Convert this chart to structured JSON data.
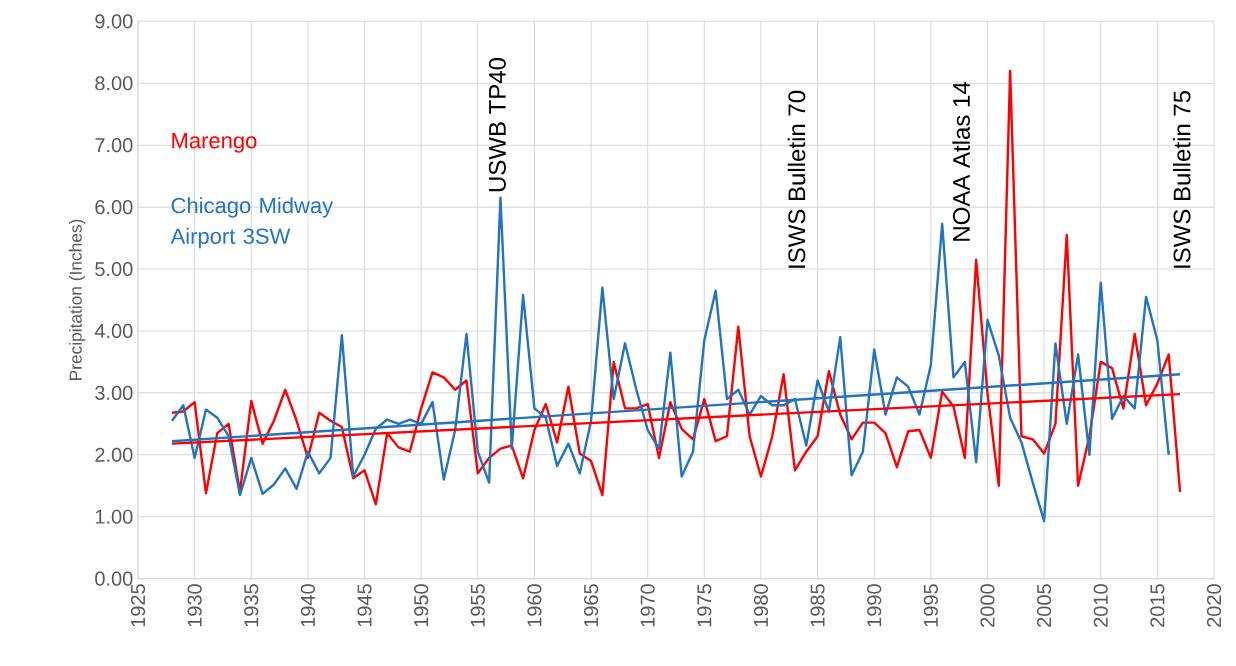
{
  "chart_data": {
    "type": "line",
    "ylabel": "Precipitation (Inches)",
    "x": [
      1928,
      1929,
      1930,
      1931,
      1932,
      1933,
      1934,
      1935,
      1936,
      1937,
      1938,
      1939,
      1940,
      1941,
      1942,
      1943,
      1944,
      1945,
      1946,
      1947,
      1948,
      1949,
      1950,
      1951,
      1952,
      1953,
      1954,
      1955,
      1956,
      1957,
      1958,
      1959,
      1960,
      1961,
      1962,
      1963,
      1964,
      1965,
      1966,
      1967,
      1968,
      1969,
      1970,
      1971,
      1972,
      1973,
      1974,
      1975,
      1976,
      1977,
      1978,
      1979,
      1980,
      1981,
      1982,
      1983,
      1984,
      1985,
      1986,
      1987,
      1988,
      1989,
      1990,
      1991,
      1992,
      1993,
      1994,
      1995,
      1996,
      1997,
      1998,
      1999,
      2000,
      2001,
      2002,
      2003,
      2004,
      2005,
      2006,
      2007,
      2008,
      2009,
      2010,
      2011,
      2012,
      2013,
      2014,
      2015,
      2016,
      2017
    ],
    "series": [
      {
        "name": "Marengo",
        "color": "#ff0000",
        "values": [
          2.68,
          2.7,
          2.85,
          1.38,
          2.35,
          2.5,
          1.4,
          2.87,
          2.18,
          2.55,
          3.05,
          2.55,
          1.95,
          2.68,
          2.55,
          2.45,
          1.62,
          1.75,
          1.2,
          2.35,
          2.12,
          2.05,
          2.75,
          3.33,
          3.25,
          3.05,
          3.2,
          1.7,
          1.95,
          2.1,
          2.15,
          1.62,
          2.4,
          2.82,
          2.2,
          3.1,
          2.02,
          1.9,
          1.35,
          3.5,
          2.75,
          2.75,
          2.82,
          1.95,
          2.85,
          2.42,
          2.25,
          2.9,
          2.22,
          2.3,
          4.07,
          2.3,
          1.65,
          2.3,
          3.3,
          1.75,
          2.05,
          2.3,
          3.35,
          2.65,
          2.25,
          2.52,
          2.52,
          2.35,
          1.8,
          2.38,
          2.4,
          1.95,
          3.02,
          2.78,
          1.95,
          5.15,
          3.0,
          1.5,
          8.2,
          2.3,
          2.25,
          2.02,
          2.5,
          5.55,
          1.5,
          2.3,
          3.5,
          3.4,
          2.75,
          3.95,
          2.8,
          3.15,
          3.62,
          1.4
        ]
      },
      {
        "name": "Chicago Midway Airport 3SW",
        "color": "#2273c0",
        "values": [
          2.55,
          2.8,
          1.95,
          2.73,
          2.6,
          2.3,
          1.35,
          1.95,
          1.37,
          1.52,
          1.78,
          1.45,
          2.05,
          1.7,
          1.95,
          3.93,
          1.65,
          2.0,
          2.42,
          2.57,
          2.5,
          2.57,
          2.5,
          2.85,
          1.6,
          2.4,
          3.95,
          2.05,
          1.55,
          6.15,
          2.1,
          4.58,
          2.75,
          2.6,
          1.82,
          2.18,
          1.7,
          2.55,
          4.7,
          2.9,
          3.8,
          3.05,
          2.4,
          2.1,
          3.65,
          1.65,
          2.05,
          3.85,
          4.65,
          2.9,
          3.05,
          2.65,
          2.95,
          2.8,
          2.8,
          2.9,
          2.15,
          3.2,
          2.7,
          3.9,
          1.67,
          2.05,
          3.7,
          2.65,
          3.25,
          3.1,
          2.65,
          3.45,
          5.73,
          3.25,
          3.5,
          1.88,
          4.18,
          3.6,
          2.6,
          2.2,
          1.55,
          0.93,
          3.8,
          2.5,
          3.62,
          2.0,
          4.78,
          2.58,
          2.95,
          2.75,
          4.55,
          3.85,
          2.0,
          null
        ]
      },
      {
        "type": "line",
        "color": "#ff0000",
        "values": [
          2.18,
          null,
          null,
          null,
          null,
          null,
          null,
          null,
          null,
          null,
          null,
          null,
          null,
          null,
          null,
          null,
          null,
          null,
          null,
          null,
          null,
          null,
          null,
          null,
          null,
          null,
          null,
          null,
          null,
          null,
          null,
          null,
          null,
          null,
          null,
          null,
          null,
          null,
          null,
          null,
          null,
          null,
          null,
          null,
          null,
          null,
          null,
          null,
          null,
          null,
          null,
          null,
          null,
          null,
          null,
          null,
          null,
          null,
          null,
          null,
          null,
          null,
          null,
          null,
          null,
          null,
          null,
          null,
          null,
          null,
          null,
          null,
          null,
          null,
          null,
          null,
          null,
          null,
          null,
          null,
          null,
          null,
          null,
          null,
          null,
          null,
          null,
          null,
          null,
          2.98
        ]
      },
      {
        "type": "line",
        "color": "#2273c0",
        "values": [
          2.22,
          null,
          null,
          null,
          null,
          null,
          null,
          null,
          null,
          null,
          null,
          null,
          null,
          null,
          null,
          null,
          null,
          null,
          null,
          null,
          null,
          null,
          null,
          null,
          null,
          null,
          null,
          null,
          null,
          null,
          null,
          null,
          null,
          null,
          null,
          null,
          null,
          null,
          null,
          null,
          null,
          null,
          null,
          null,
          null,
          null,
          null,
          null,
          null,
          null,
          null,
          null,
          null,
          null,
          null,
          null,
          null,
          null,
          null,
          null,
          null,
          null,
          null,
          null,
          null,
          null,
          null,
          null,
          null,
          null,
          null,
          null,
          null,
          null,
          null,
          null,
          null,
          null,
          null,
          null,
          null,
          null,
          null,
          null,
          null,
          null,
          null,
          null,
          null,
          3.3
        ]
      }
    ],
    "annotations": [
      "USWB TP40",
      "ISWS Bulletin 70",
      "NOAA Atlas 14",
      "ISWS Bulletin 75"
    ],
    "xlim": [
      1925,
      2020
    ],
    "ylim": [
      0,
      9
    ],
    "xticks": [
      1925,
      1930,
      1935,
      1940,
      1945,
      1950,
      1955,
      1960,
      1965,
      1970,
      1975,
      1980,
      1985,
      1990,
      1995,
      2000,
      2005,
      2010,
      2015,
      2020
    ],
    "yticks": [
      {
        "value": 0,
        "label": "0.00"
      },
      {
        "value": 1,
        "label": "1.00"
      },
      {
        "value": 2,
        "label": "2.00"
      },
      {
        "value": 3,
        "label": "3.00"
      },
      {
        "value": 4,
        "label": "4.00"
      },
      {
        "value": 5,
        "label": "5.00"
      },
      {
        "value": 6,
        "label": "6.00"
      },
      {
        "value": 7,
        "label": "7.00"
      },
      {
        "value": 8,
        "label": "8.00"
      },
      {
        "value": 9,
        "label": "9.00"
      }
    ],
    "grid": true,
    "legend": "top left"
  }
}
